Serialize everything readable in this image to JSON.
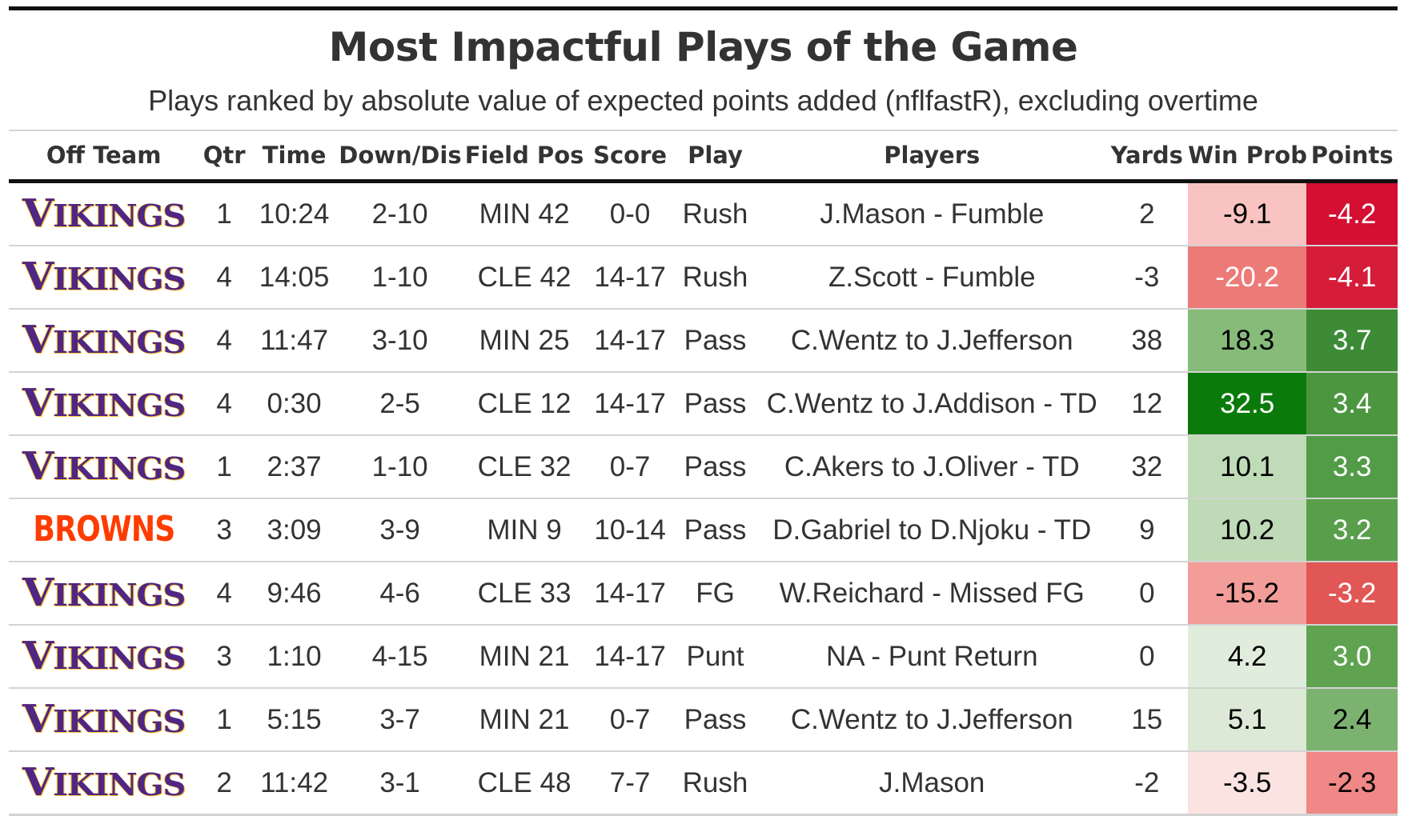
{
  "chart_data": {
    "type": "table",
    "title": "Most Impactful Plays of the Game",
    "subtitle": "Plays ranked by absolute value of expected points added (nflfastR), excluding overtime",
    "columns": [
      "Off Team",
      "Qtr",
      "Time",
      "Down/Dis",
      "Field Pos",
      "Score",
      "Play",
      "Players",
      "Yards",
      "Win Prob",
      "Points"
    ],
    "rows": [
      {
        "team": "VIKINGS",
        "qtr": "1",
        "time": "10:24",
        "down": "2-10",
        "field": "MIN 42",
        "score": "0-0",
        "play": "Rush",
        "players": "J.Mason - Fumble",
        "yards": "2",
        "wp": "-9.1",
        "pts": "-4.2",
        "wp_bg": "#f8c3c0",
        "pts_bg": "#d40f32",
        "wp_dark": false,
        "pts_dark": true
      },
      {
        "team": "VIKINGS",
        "qtr": "4",
        "time": "14:05",
        "down": "1-10",
        "field": "CLE 42",
        "score": "14-17",
        "play": "Rush",
        "players": "Z.Scott - Fumble",
        "yards": "-3",
        "wp": "-20.2",
        "pts": "-4.1",
        "wp_bg": "#ec7b78",
        "pts_bg": "#d51d3a",
        "wp_dark": true,
        "pts_dark": true
      },
      {
        "team": "VIKINGS",
        "qtr": "4",
        "time": "11:47",
        "down": "3-10",
        "field": "MIN 25",
        "score": "14-17",
        "play": "Pass",
        "players": "C.Wentz to J.Jefferson",
        "yards": "38",
        "wp": "18.3",
        "pts": "3.7",
        "wp_bg": "#86bb7a",
        "pts_bg": "#3d8b37",
        "wp_dark": false,
        "pts_dark": true
      },
      {
        "team": "VIKINGS",
        "qtr": "4",
        "time": "0:30",
        "down": "2-5",
        "field": "CLE 12",
        "score": "14-17",
        "play": "Pass",
        "players": "C.Wentz to J.Addison - TD",
        "yards": "12",
        "wp": "32.5",
        "pts": "3.4",
        "wp_bg": "#0a7b0a",
        "pts_bg": "#4d9640",
        "wp_dark": true,
        "pts_dark": true
      },
      {
        "team": "VIKINGS",
        "qtr": "1",
        "time": "2:37",
        "down": "1-10",
        "field": "CLE 32",
        "score": "0-7",
        "play": "Pass",
        "players": "C.Akers to J.Oliver - TD",
        "yards": "32",
        "wp": "10.1",
        "pts": "3.3",
        "wp_bg": "#bfdbb7",
        "pts_bg": "#529b47",
        "wp_dark": false,
        "pts_dark": true
      },
      {
        "team": "BROWNS",
        "qtr": "3",
        "time": "3:09",
        "down": "3-9",
        "field": "MIN 9",
        "score": "10-14",
        "play": "Pass",
        "players": "D.Gabriel to D.Njoku - TD",
        "yards": "9",
        "wp": "10.2",
        "pts": "3.2",
        "wp_bg": "#bedab6",
        "pts_bg": "#589e4b",
        "wp_dark": false,
        "pts_dark": true
      },
      {
        "team": "VIKINGS",
        "qtr": "4",
        "time": "9:46",
        "down": "4-6",
        "field": "CLE 33",
        "score": "14-17",
        "play": "FG",
        "players": "W.Reichard - Missed FG",
        "yards": "0",
        "wp": "-15.2",
        "pts": "-3.2",
        "wp_bg": "#f29d99",
        "pts_bg": "#e05756",
        "wp_dark": false,
        "pts_dark": true
      },
      {
        "team": "VIKINGS",
        "qtr": "3",
        "time": "1:10",
        "down": "4-15",
        "field": "MIN 21",
        "score": "14-17",
        "play": "Punt",
        "players": "NA - Punt Return",
        "yards": "0",
        "wp": "4.2",
        "pts": "3.0",
        "wp_bg": "#e1eddc",
        "pts_bg": "#5fa350",
        "wp_dark": false,
        "pts_dark": true
      },
      {
        "team": "VIKINGS",
        "qtr": "1",
        "time": "5:15",
        "down": "3-7",
        "field": "MIN 21",
        "score": "0-7",
        "play": "Pass",
        "players": "C.Wentz to J.Jefferson",
        "yards": "15",
        "wp": "5.1",
        "pts": "2.4",
        "wp_bg": "#dce9d6",
        "pts_bg": "#7bb26f",
        "wp_dark": false,
        "pts_dark": false
      },
      {
        "team": "VIKINGS",
        "qtr": "2",
        "time": "11:42",
        "down": "3-1",
        "field": "CLE 48",
        "score": "7-7",
        "play": "Rush",
        "players": "J.Mason",
        "yards": "-2",
        "wp": "-3.5",
        "pts": "-2.3",
        "wp_bg": "#fbe3e1",
        "pts_bg": "#ef8886",
        "wp_dark": false,
        "pts_dark": false
      }
    ]
  }
}
